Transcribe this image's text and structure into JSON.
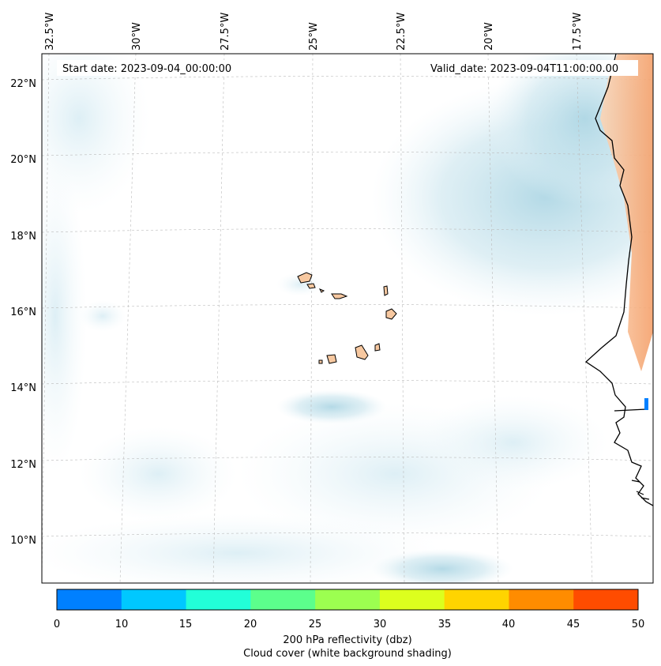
{
  "map": {
    "start_date": "Start date: 2023-09-04_00:00:00",
    "valid_date": "Valid_date: 2023-09-04T11:00:00.00",
    "lon_labels": [
      "32.5°W",
      "30°W",
      "27.5°W",
      "25°W",
      "22.5°W",
      "20°W",
      "17.5°W"
    ],
    "lat_labels": [
      "22°N",
      "20°N",
      "18°N",
      "16°N",
      "14°N",
      "12°N",
      "10°N"
    ],
    "land_color": "#f7c8a0",
    "cloud_color": "#add8e6",
    "gridline_color": "#b0b0b0"
  },
  "colorbar": {
    "ticks": [
      "0",
      "10",
      "15",
      "20",
      "25",
      "30",
      "35",
      "40",
      "45",
      "50"
    ],
    "colors": [
      "#0080ff",
      "#00c8ff",
      "#22ffd8",
      "#5cff8c",
      "#9cff50",
      "#dcff1e",
      "#ffd400",
      "#ff8c00",
      "#ff4c00"
    ],
    "label_line1": "200 hPa reflectivity (dbz)",
    "label_line2": "Cloud cover (white background shading)"
  }
}
